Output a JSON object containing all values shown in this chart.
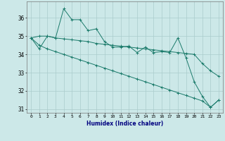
{
  "xlabel": "Humidex (Indice chaleur)",
  "x": [
    0,
    1,
    2,
    3,
    4,
    5,
    6,
    7,
    8,
    9,
    10,
    11,
    12,
    13,
    14,
    15,
    16,
    17,
    18,
    19,
    20,
    21,
    22,
    23
  ],
  "y_main": [
    34.9,
    34.3,
    35.0,
    34.9,
    36.5,
    35.9,
    35.9,
    35.3,
    35.4,
    34.7,
    34.4,
    34.4,
    34.45,
    34.1,
    34.4,
    34.1,
    34.15,
    34.1,
    34.9,
    33.8,
    32.5,
    31.7,
    31.1,
    31.5
  ],
  "y_upper": [
    34.9,
    35.0,
    35.0,
    34.9,
    34.85,
    34.8,
    34.75,
    34.7,
    34.6,
    34.55,
    34.5,
    34.45,
    34.4,
    34.35,
    34.3,
    34.25,
    34.2,
    34.15,
    34.1,
    34.05,
    34.0,
    33.5,
    33.1,
    32.8
  ],
  "y_lower": [
    34.9,
    34.5,
    34.3,
    34.15,
    34.0,
    33.85,
    33.7,
    33.55,
    33.4,
    33.25,
    33.1,
    32.95,
    32.8,
    32.65,
    32.5,
    32.35,
    32.2,
    32.05,
    31.9,
    31.75,
    31.6,
    31.45,
    31.1,
    31.5
  ],
  "color": "#1a7a6a",
  "bg_color": "#cce8e8",
  "grid_color": "#aacccc",
  "ylim": [
    30.8,
    36.9
  ],
  "yticks": [
    31,
    32,
    33,
    34,
    35,
    36
  ],
  "xticks": [
    0,
    1,
    2,
    3,
    4,
    5,
    6,
    7,
    8,
    9,
    10,
    11,
    12,
    13,
    14,
    15,
    16,
    17,
    18,
    19,
    20,
    21,
    22,
    23
  ]
}
